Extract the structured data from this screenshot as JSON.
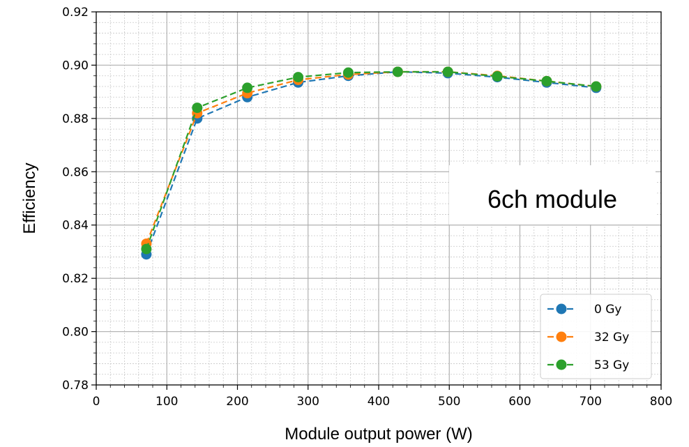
{
  "chart_data": {
    "type": "line",
    "title": "",
    "xlabel": "Module output power (W)",
    "ylabel": "Efficiency",
    "xlim": [
      0,
      800
    ],
    "ylim": [
      0.78,
      0.92
    ],
    "xticks": [
      0,
      100,
      200,
      300,
      400,
      500,
      600,
      700,
      800
    ],
    "xtick_labels": [
      "0",
      "100",
      "200",
      "300",
      "400",
      "500",
      "600",
      "700",
      "800"
    ],
    "yticks": [
      0.78,
      0.8,
      0.82,
      0.84,
      0.86,
      0.88,
      0.9,
      0.92
    ],
    "ytick_labels": [
      "0.78",
      "0.80",
      "0.82",
      "0.84",
      "0.86",
      "0.88",
      "0.90",
      "0.92"
    ],
    "grid": true,
    "minor_grid": true,
    "line_style": "dashed",
    "marker": "circle",
    "legend_position": "bottom-right",
    "annotation": "6ch module",
    "x": [
      71,
      143,
      214,
      286,
      357,
      427,
      498,
      568,
      638,
      708
    ],
    "series": [
      {
        "name": "0 Gy",
        "color": "#1f77b4",
        "values": [
          0.829,
          0.88,
          0.888,
          0.8935,
          0.896,
          0.8975,
          0.897,
          0.8955,
          0.8935,
          0.8915
        ]
      },
      {
        "name": "32 Gy",
        "color": "#ff7f0e",
        "values": [
          0.833,
          0.882,
          0.8895,
          0.8945,
          0.8965,
          0.8975,
          0.8975,
          0.896,
          0.894,
          0.892
        ]
      },
      {
        "name": "53 Gy",
        "color": "#2ca02c",
        "values": [
          0.831,
          0.884,
          0.8915,
          0.8955,
          0.8972,
          0.8975,
          0.8975,
          0.8958,
          0.894,
          0.892
        ]
      }
    ]
  }
}
